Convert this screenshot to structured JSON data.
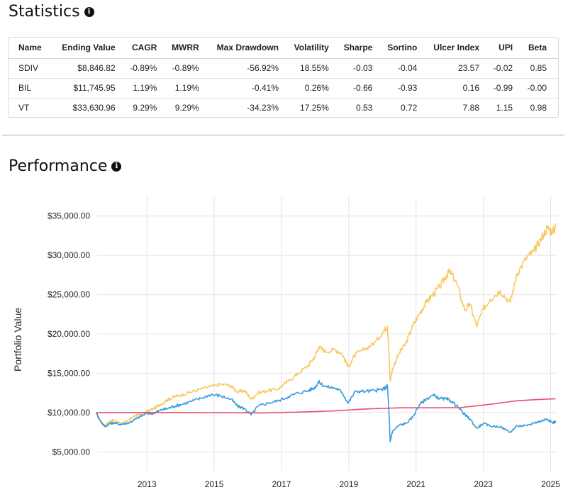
{
  "stats": {
    "title": "Statistics",
    "info_icon": "info-icon",
    "columns": [
      "Name",
      "Ending Value",
      "CAGR",
      "MWRR",
      "Max Drawdown",
      "Volatility",
      "Sharpe",
      "Sortino",
      "Ulcer Index",
      "UPI",
      "Beta"
    ],
    "rows": [
      [
        "SDIV",
        "$8,846.82",
        "-0.89%",
        "-0.89%",
        "-56.92%",
        "18.55%",
        "-0.03",
        "-0.04",
        "23.57",
        "-0.02",
        "0.85"
      ],
      [
        "BIL",
        "$11,745.95",
        "1.19%",
        "1.19%",
        "-0.41%",
        "0.26%",
        "-0.66",
        "-0.93",
        "0.16",
        "-0.99",
        "-0.00"
      ],
      [
        "VT",
        "$33,630.96",
        "9.29%",
        "9.29%",
        "-34.23%",
        "17.25%",
        "0.53",
        "0.72",
        "7.88",
        "1.15",
        "0.98"
      ]
    ]
  },
  "performance": {
    "title": "Performance",
    "info_icon": "info-icon"
  },
  "chart_data": {
    "type": "line",
    "ylabel": "Portfolio Value",
    "xlabel": "",
    "xlim": [
      2011.5,
      2025.2
    ],
    "ylim": [
      2500,
      37500
    ],
    "x_ticks": [
      2013,
      2015,
      2017,
      2019,
      2021,
      2023,
      2025
    ],
    "x_tick_labels": [
      "2013",
      "2015",
      "2017",
      "2019",
      "2021",
      "2023",
      "2025"
    ],
    "y_ticks": [
      5000,
      10000,
      15000,
      20000,
      25000,
      30000,
      35000
    ],
    "y_tick_labels": [
      "$5,000.00",
      "$10,000.00",
      "$15,000.00",
      "$20,000.00",
      "$25,000.00",
      "$30,000.00",
      "$35,000.00"
    ],
    "grid": true,
    "series": [
      {
        "color": "#f7c85e",
        "points": [
          [
            2011.5,
            10000
          ],
          [
            2011.6,
            9100
          ],
          [
            2011.75,
            8300
          ],
          [
            2011.9,
            8900
          ],
          [
            2012.0,
            9000
          ],
          [
            2012.2,
            8700
          ],
          [
            2012.4,
            8800
          ],
          [
            2012.6,
            9500
          ],
          [
            2012.8,
            9800
          ],
          [
            2013.0,
            10100
          ],
          [
            2013.2,
            10500
          ],
          [
            2013.4,
            11000
          ],
          [
            2013.6,
            11600
          ],
          [
            2013.8,
            12000
          ],
          [
            2014.0,
            12200
          ],
          [
            2014.3,
            12600
          ],
          [
            2014.6,
            13000
          ],
          [
            2014.9,
            13300
          ],
          [
            2015.2,
            13600
          ],
          [
            2015.5,
            13400
          ],
          [
            2015.7,
            12600
          ],
          [
            2015.9,
            12800
          ],
          [
            2016.1,
            11700
          ],
          [
            2016.3,
            12500
          ],
          [
            2016.6,
            12800
          ],
          [
            2016.9,
            13000
          ],
          [
            2017.2,
            14000
          ],
          [
            2017.5,
            15000
          ],
          [
            2017.8,
            16000
          ],
          [
            2018.0,
            17200
          ],
          [
            2018.1,
            18300
          ],
          [
            2018.3,
            17800
          ],
          [
            2018.6,
            18000
          ],
          [
            2018.8,
            17500
          ],
          [
            2018.98,
            15800
          ],
          [
            2019.2,
            17400
          ],
          [
            2019.5,
            18100
          ],
          [
            2019.8,
            19000
          ],
          [
            2020.05,
            20500
          ],
          [
            2020.15,
            21000
          ],
          [
            2020.2,
            17000
          ],
          [
            2020.23,
            14000
          ],
          [
            2020.3,
            15600
          ],
          [
            2020.5,
            17600
          ],
          [
            2020.7,
            18800
          ],
          [
            2020.9,
            21000
          ],
          [
            2021.1,
            22600
          ],
          [
            2021.3,
            24000
          ],
          [
            2021.5,
            25000
          ],
          [
            2021.7,
            26000
          ],
          [
            2021.9,
            27400
          ],
          [
            2022.0,
            28000
          ],
          [
            2022.2,
            26500
          ],
          [
            2022.45,
            23000
          ],
          [
            2022.6,
            23800
          ],
          [
            2022.8,
            21000
          ],
          [
            2023.0,
            23200
          ],
          [
            2023.2,
            24400
          ],
          [
            2023.5,
            25500
          ],
          [
            2023.8,
            24000
          ],
          [
            2024.0,
            27700
          ],
          [
            2024.3,
            29800
          ],
          [
            2024.5,
            30500
          ],
          [
            2024.7,
            32000
          ],
          [
            2024.9,
            33500
          ],
          [
            2025.05,
            33000
          ],
          [
            2025.15,
            33630.96
          ]
        ]
      },
      {
        "color": "#3b9cdc",
        "points": [
          [
            2011.5,
            10000
          ],
          [
            2011.6,
            9000
          ],
          [
            2011.75,
            8200
          ],
          [
            2011.9,
            8600
          ],
          [
            2012.0,
            8700
          ],
          [
            2012.2,
            8500
          ],
          [
            2012.4,
            8600
          ],
          [
            2012.6,
            9000
          ],
          [
            2012.8,
            9500
          ],
          [
            2013.0,
            9900
          ],
          [
            2013.2,
            9900
          ],
          [
            2013.4,
            10300
          ],
          [
            2013.6,
            10500
          ],
          [
            2013.8,
            10800
          ],
          [
            2014.0,
            11000
          ],
          [
            2014.3,
            11400
          ],
          [
            2014.6,
            11800
          ],
          [
            2014.9,
            12300
          ],
          [
            2015.2,
            12100
          ],
          [
            2015.5,
            11700
          ],
          [
            2015.7,
            10800
          ],
          [
            2015.9,
            10500
          ],
          [
            2016.1,
            9700
          ],
          [
            2016.3,
            10800
          ],
          [
            2016.6,
            11200
          ],
          [
            2016.9,
            11500
          ],
          [
            2017.2,
            12000
          ],
          [
            2017.5,
            12500
          ],
          [
            2017.8,
            12800
          ],
          [
            2018.0,
            13200
          ],
          [
            2018.1,
            13900
          ],
          [
            2018.3,
            13300
          ],
          [
            2018.6,
            13100
          ],
          [
            2018.8,
            12600
          ],
          [
            2018.98,
            11200
          ],
          [
            2019.2,
            12700
          ],
          [
            2019.5,
            12700
          ],
          [
            2019.8,
            12800
          ],
          [
            2020.05,
            13000
          ],
          [
            2020.15,
            13400
          ],
          [
            2020.2,
            9500
          ],
          [
            2020.23,
            6300
          ],
          [
            2020.3,
            7600
          ],
          [
            2020.5,
            8400
          ],
          [
            2020.7,
            8600
          ],
          [
            2020.9,
            9400
          ],
          [
            2021.1,
            11000
          ],
          [
            2021.3,
            11700
          ],
          [
            2021.5,
            12200
          ],
          [
            2021.7,
            11800
          ],
          [
            2021.9,
            11700
          ],
          [
            2022.0,
            11600
          ],
          [
            2022.2,
            10900
          ],
          [
            2022.45,
            9700
          ],
          [
            2022.6,
            9200
          ],
          [
            2022.8,
            8000
          ],
          [
            2023.0,
            8600
          ],
          [
            2023.2,
            8300
          ],
          [
            2023.5,
            8200
          ],
          [
            2023.8,
            7500
          ],
          [
            2024.0,
            8300
          ],
          [
            2024.3,
            8300
          ],
          [
            2024.5,
            8700
          ],
          [
            2024.7,
            8900
          ],
          [
            2024.9,
            9200
          ],
          [
            2025.05,
            8700
          ],
          [
            2025.15,
            8846.82
          ]
        ]
      },
      {
        "color": "#ea4c74",
        "points": [
          [
            2011.5,
            10000
          ],
          [
            2013.0,
            10000
          ],
          [
            2015.0,
            9990
          ],
          [
            2016.5,
            9950
          ],
          [
            2017.5,
            10050
          ],
          [
            2018.5,
            10200
          ],
          [
            2019.5,
            10450
          ],
          [
            2020.5,
            10600
          ],
          [
            2021.5,
            10600
          ],
          [
            2022.3,
            10620
          ],
          [
            2022.8,
            10850
          ],
          [
            2023.3,
            11100
          ],
          [
            2024.0,
            11500
          ],
          [
            2024.6,
            11650
          ],
          [
            2025.15,
            11745.95
          ]
        ]
      }
    ]
  }
}
